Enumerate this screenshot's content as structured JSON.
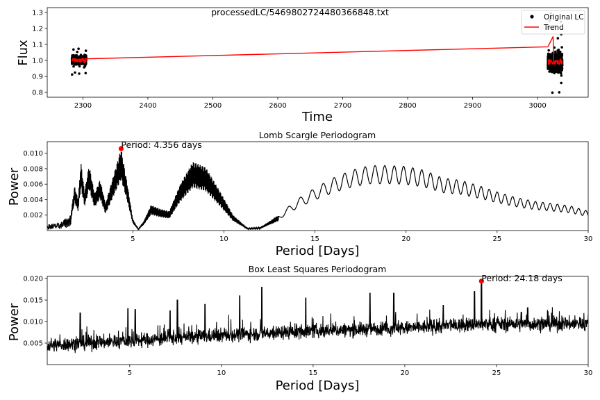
{
  "chart_data": [
    {
      "type": "scatter",
      "title": "processedLC/5469802724480366848.txt",
      "xlabel": "Time",
      "ylabel": "Flux",
      "xlim": [
        2245,
        3078
      ],
      "ylim": [
        0.77,
        1.33
      ],
      "xticks": [
        2300,
        2400,
        2500,
        2600,
        2700,
        2800,
        2900,
        3000
      ],
      "yticks": [
        0.8,
        0.9,
        1.0,
        1.1,
        1.2,
        1.3
      ],
      "grid": false,
      "legend": {
        "placement": "top-right",
        "entries": [
          "Original LC",
          "Trend"
        ]
      },
      "series": [
        {
          "name": "Original LC",
          "kind": "points",
          "color": "#000000",
          "segments": [
            {
              "x_range": [
                2283,
                2305
              ],
              "center": 1.0,
              "spread": 0.045,
              "extremes": [
                0.91,
                1.08
              ]
            },
            {
              "x_range": [
                3016,
                3038
              ],
              "center": 0.99,
              "spread": 0.09,
              "extremes": [
                0.79,
                1.3
              ]
            }
          ]
        },
        {
          "name": "Trend",
          "kind": "line",
          "color": "#ff0000",
          "points": [
            [
              2283,
              1.005
            ],
            [
              2305,
              1.01
            ],
            [
              3016,
              1.085
            ],
            [
              3024,
              1.15
            ],
            [
              3025,
              0.99
            ],
            [
              3030,
              1.0
            ],
            [
              3038,
              0.99
            ]
          ]
        }
      ]
    },
    {
      "type": "line",
      "title": "Lomb Scargle Periodogram",
      "xlabel": "Period [Days]",
      "ylabel": "Power",
      "xlim": [
        0.3,
        30
      ],
      "ylim": [
        0.0,
        0.0115
      ],
      "xticks": [
        5,
        10,
        15,
        20,
        25,
        30
      ],
      "yticks": [
        0.002,
        0.004,
        0.006,
        0.008,
        0.01
      ],
      "grid": false,
      "color": "#000000",
      "peak": {
        "period": 4.356,
        "power": 0.0106,
        "label": "Period: 4.356 days",
        "color": "#ff0000"
      },
      "envelope": [
        [
          0.3,
          0.0008
        ],
        [
          1.0,
          0.001
        ],
        [
          1.3,
          0.0016
        ],
        [
          1.6,
          0.0022
        ],
        [
          1.8,
          0.0058
        ],
        [
          2.0,
          0.004
        ],
        [
          2.15,
          0.0089
        ],
        [
          2.35,
          0.005
        ],
        [
          2.6,
          0.0085
        ],
        [
          2.9,
          0.0048
        ],
        [
          3.2,
          0.0066
        ],
        [
          3.5,
          0.0035
        ],
        [
          3.8,
          0.006
        ],
        [
          4.1,
          0.0085
        ],
        [
          4.356,
          0.0106
        ],
        [
          4.7,
          0.006
        ],
        [
          5.0,
          0.0015
        ],
        [
          5.3,
          0.0002
        ],
        [
          5.6,
          0.0012
        ],
        [
          6.0,
          0.0033
        ],
        [
          6.5,
          0.0028
        ],
        [
          7.0,
          0.0025
        ],
        [
          7.6,
          0.006
        ],
        [
          8.3,
          0.0089
        ],
        [
          9.0,
          0.0082
        ],
        [
          9.8,
          0.005
        ],
        [
          10.5,
          0.002
        ],
        [
          11.3,
          0.0003
        ],
        [
          12.0,
          0.0004
        ],
        [
          13.0,
          0.002
        ],
        [
          14.0,
          0.004
        ],
        [
          15.0,
          0.0055
        ],
        [
          16.0,
          0.0068
        ],
        [
          17.0,
          0.0078
        ],
        [
          18.0,
          0.0084
        ],
        [
          19.0,
          0.0084
        ],
        [
          20.0,
          0.0083
        ],
        [
          21.0,
          0.0078
        ],
        [
          22.0,
          0.0068
        ],
        [
          23.0,
          0.0065
        ],
        [
          24.0,
          0.0058
        ],
        [
          25.0,
          0.005
        ],
        [
          26.0,
          0.0043
        ],
        [
          27.0,
          0.0038
        ],
        [
          28.0,
          0.0035
        ],
        [
          29.0,
          0.0032
        ],
        [
          30.0,
          0.0025
        ]
      ]
    },
    {
      "type": "line",
      "title": "Box Least Squares Periodogram",
      "xlabel": "Period [Days]",
      "ylabel": "Power",
      "xlim": [
        0.5,
        30
      ],
      "ylim": [
        0.0,
        0.0205
      ],
      "xticks": [
        5,
        10,
        15,
        20,
        25,
        30
      ],
      "yticks": [
        0.005,
        0.01,
        0.015,
        0.02
      ],
      "grid": false,
      "color": "#000000",
      "peak": {
        "period": 24.18,
        "power": 0.0194,
        "label": "Period: 24.18 days",
        "color": "#ff0000"
      },
      "baseline": [
        [
          0.5,
          0.0045
        ],
        [
          5,
          0.0055
        ],
        [
          10,
          0.0068
        ],
        [
          15,
          0.0078
        ],
        [
          20,
          0.0085
        ],
        [
          24,
          0.0093
        ],
        [
          30,
          0.0095
        ]
      ],
      "spikes": [
        [
          2.3,
          0.012
        ],
        [
          4.9,
          0.013
        ],
        [
          5.3,
          0.0128
        ],
        [
          7.2,
          0.0125
        ],
        [
          7.6,
          0.015
        ],
        [
          9.1,
          0.014
        ],
        [
          11.0,
          0.016
        ],
        [
          12.2,
          0.018
        ],
        [
          14.6,
          0.0155
        ],
        [
          18.1,
          0.0166
        ],
        [
          19.4,
          0.0166
        ],
        [
          22.1,
          0.0138
        ],
        [
          23.8,
          0.017
        ],
        [
          24.18,
          0.0194
        ],
        [
          26.7,
          0.0132
        ],
        [
          27.8,
          0.0123
        ]
      ]
    }
  ]
}
